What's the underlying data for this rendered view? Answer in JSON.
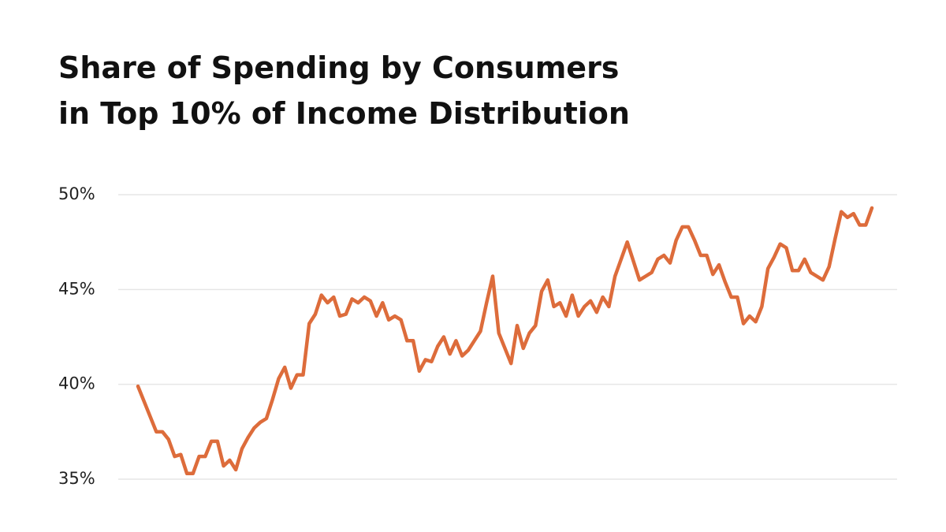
{
  "chart_data": {
    "type": "line",
    "title": [
      "Share of Spending by Consumers",
      "in Top 10% of Income Distribution"
    ],
    "color": "#dd6c3b",
    "grid": true,
    "ylim": [
      35,
      50
    ],
    "yticks": [
      {
        "value": 35,
        "label": "35%"
      },
      {
        "value": 40,
        "label": "40%"
      },
      {
        "value": 45,
        "label": "45%"
      },
      {
        "value": 50,
        "label": "50%"
      }
    ],
    "values": [
      39.9,
      39.1,
      38.3,
      37.5,
      37.5,
      37.1,
      36.2,
      36.3,
      35.3,
      35.3,
      36.2,
      36.2,
      37.0,
      37.0,
      35.7,
      36.0,
      35.5,
      36.6,
      37.2,
      37.7,
      38.0,
      38.2,
      39.2,
      40.3,
      40.9,
      39.8,
      40.5,
      40.5,
      43.2,
      43.7,
      44.7,
      44.3,
      44.6,
      43.6,
      43.7,
      44.5,
      44.3,
      44.6,
      44.4,
      43.6,
      44.3,
      43.4,
      43.6,
      43.4,
      42.3,
      42.3,
      40.7,
      41.3,
      41.2,
      42.0,
      42.5,
      41.6,
      42.3,
      41.5,
      41.8,
      42.3,
      42.8,
      44.3,
      45.7,
      42.7,
      41.9,
      41.1,
      43.1,
      41.9,
      42.7,
      43.1,
      44.9,
      45.5,
      44.1,
      44.3,
      43.6,
      44.7,
      43.6,
      44.1,
      44.4,
      43.8,
      44.6,
      44.1,
      45.7,
      46.6,
      47.5,
      46.5,
      45.5,
      45.7,
      45.9,
      46.6,
      46.8,
      46.4,
      47.6,
      48.3,
      48.3,
      47.6,
      46.8,
      46.8,
      45.8,
      46.3,
      45.4,
      44.6,
      44.6,
      43.2,
      43.6,
      43.3,
      44.1,
      46.1,
      46.7,
      47.4,
      47.2,
      46.0,
      46.0,
      46.6,
      45.9,
      45.7,
      45.5,
      46.2,
      47.7,
      49.1,
      48.8,
      49.0,
      48.4,
      48.4,
      49.3
    ]
  }
}
